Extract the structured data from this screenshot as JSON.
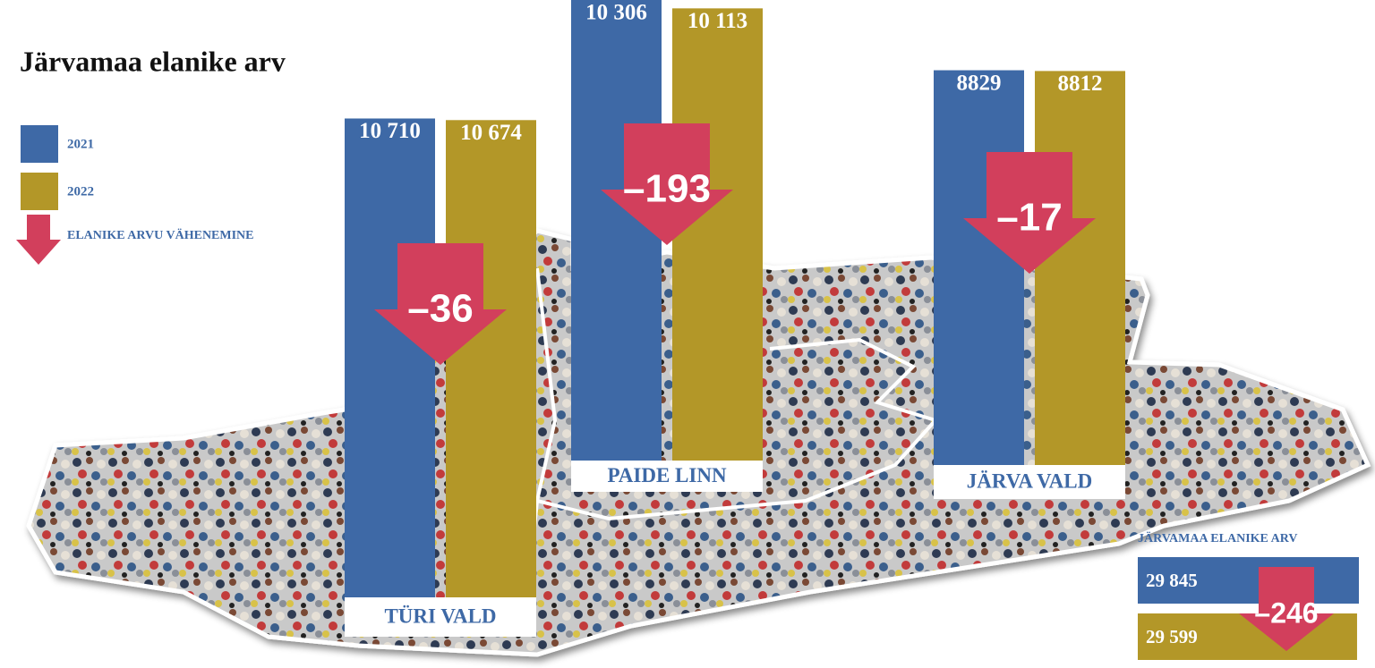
{
  "chart_data": {
    "type": "bar",
    "title": "Järvamaa elanike arv",
    "categories": [
      "TÜRI VALD",
      "PAIDE LINN",
      "JÄRVA VALD"
    ],
    "series": [
      {
        "name": "2021",
        "color": "#3e69a6",
        "values": [
          10710,
          10306,
          8829
        ],
        "value_labels": [
          "10 710",
          "10 306",
          "8829"
        ]
      },
      {
        "name": "2022",
        "color": "#b39728",
        "values": [
          10674,
          10113,
          8812
        ],
        "value_labels": [
          "10 674",
          "10 113",
          "8812"
        ]
      }
    ],
    "change": {
      "name": "ELANIKE ARVU VÄHENEMINE",
      "color": "#d23f5c",
      "values": [
        -36,
        -193,
        -17
      ],
      "value_labels": [
        "–36",
        "–193",
        "–17"
      ]
    },
    "total": {
      "title": "JÄRVAMAA ELANIKE ARV",
      "values": [
        29845,
        29599
      ],
      "value_labels": [
        "29 845",
        "29 599"
      ],
      "change": -246,
      "change_label": "–246"
    }
  }
}
